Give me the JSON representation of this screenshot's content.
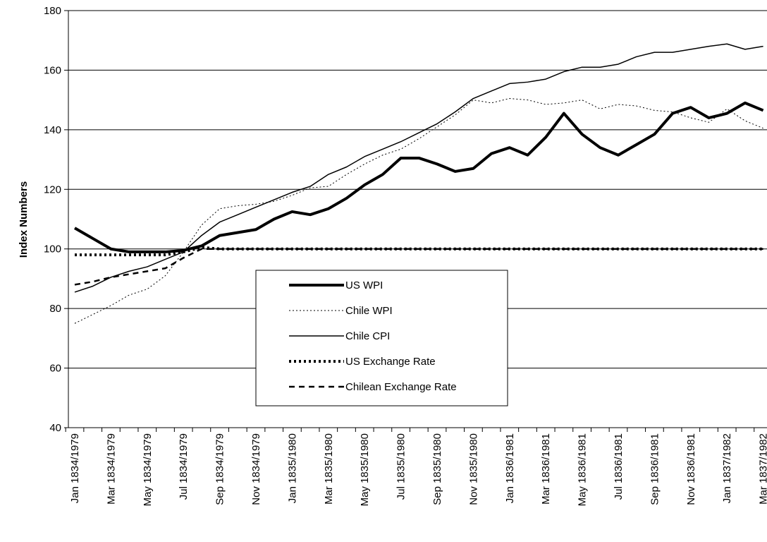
{
  "chart_data": {
    "type": "line",
    "y_label": "Index Numbers",
    "categories": [
      "Jan 1834/1979",
      null,
      "Mar 1834/1979",
      null,
      "May 1834/1979",
      null,
      "Jul 1834/1979",
      null,
      "Sep 1834/1979",
      null,
      "Nov 1834/1979",
      null,
      "Jan 1835/1980",
      null,
      "Mar 1835/1980",
      null,
      "May 1835/1980",
      null,
      "Jul 1835/1980",
      null,
      "Sep 1835/1980",
      null,
      "Nov 1835/1980",
      null,
      "Jan 1836/1981",
      null,
      "Mar 1836/1981",
      null,
      "May 1836/1981",
      null,
      "Jul 1836/1981",
      null,
      "Sep 1836/1981",
      null,
      "Nov 1836/1981",
      null,
      "Jan 1837/1982",
      null,
      "Mar 1837/1982"
    ],
    "series": [
      {
        "name": "US WPI",
        "color": "#000000",
        "style": "solid",
        "width": 4,
        "values": [
          107,
          103.5,
          100,
          99,
          99,
          99,
          99.5,
          101,
          104.5,
          105.5,
          106.5,
          110,
          112.5,
          111.5,
          113.5,
          117,
          121.5,
          125,
          130.5,
          130.5,
          128.5,
          126,
          127,
          132,
          134,
          131.5,
          137.5,
          145.5,
          138.5,
          134,
          131.5,
          135,
          138.5,
          145.5,
          147.5,
          144,
          145.5,
          149,
          146.5
        ]
      },
      {
        "name": "Chile WPI",
        "color": "#000000",
        "style": "dotted",
        "width": 1,
        "values": [
          75,
          78,
          81,
          84.5,
          86.5,
          91,
          99,
          108,
          113.5,
          114.5,
          115,
          116,
          118,
          120.5,
          121,
          125,
          128.5,
          131.5,
          133.5,
          137,
          141,
          145,
          150,
          149,
          150.5,
          150,
          148.5,
          149,
          150,
          147,
          148.5,
          148,
          146.5,
          146,
          144,
          142.5,
          147,
          143,
          140.5
        ]
      },
      {
        "name": "Chile CPI",
        "color": "#000000",
        "style": "solid",
        "width": 1.5,
        "values": [
          85.5,
          87.5,
          90.5,
          92.5,
          94,
          96.5,
          99,
          104.5,
          109,
          111.5,
          114,
          116.5,
          119,
          121,
          125,
          127.5,
          131,
          133.5,
          136,
          139,
          142,
          146,
          150.5,
          153,
          155.5,
          156,
          157,
          159.5,
          161,
          161,
          162,
          164.5,
          166,
          166,
          167,
          168,
          168.8,
          167,
          168
        ]
      },
      {
        "name": "US Exchange Rate",
        "color": "#000000",
        "style": "dotted",
        "width": 4,
        "values": [
          98,
          98,
          98,
          98,
          98,
          98,
          99,
          100.5,
          100,
          100,
          100,
          100,
          100,
          100,
          100,
          100,
          100,
          100,
          100,
          100,
          100,
          100,
          100,
          100,
          100,
          100,
          100,
          100,
          100,
          100,
          100,
          100,
          100,
          100,
          100,
          100,
          100,
          100,
          100
        ]
      },
      {
        "name": "Chilean Exchange Rate",
        "color": "#000000",
        "style": "dashed",
        "width": 2.5,
        "values": [
          88,
          89,
          90.5,
          91.5,
          92.5,
          93.5,
          97,
          100,
          100,
          100,
          100,
          100,
          100,
          100,
          100,
          100,
          100,
          100,
          100,
          100,
          100,
          100,
          100,
          100,
          100,
          100,
          100,
          100,
          100,
          100,
          100,
          100,
          100,
          100,
          100,
          100,
          100,
          100,
          100
        ]
      }
    ],
    "ylim": [
      40,
      180
    ],
    "yticks": [
      40,
      60,
      80,
      100,
      120,
      140,
      160,
      180
    ],
    "grid": true
  }
}
